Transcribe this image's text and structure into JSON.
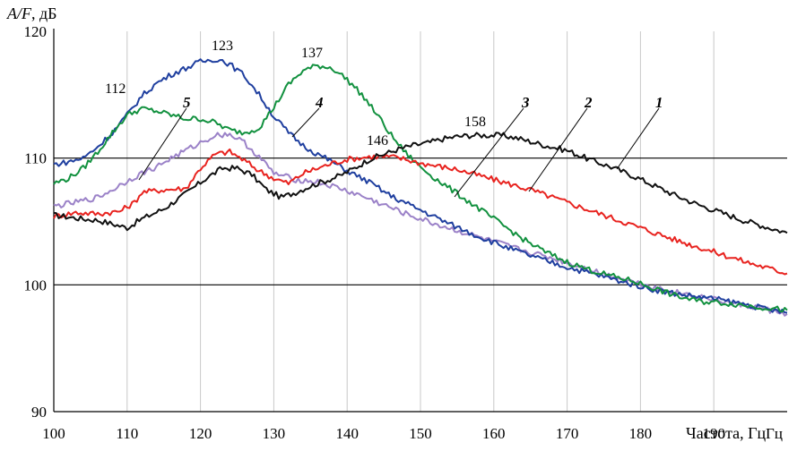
{
  "chart_data": {
    "type": "line",
    "title": "",
    "ylabel_prefix": "A/F",
    "ylabel_suffix": ", дБ",
    "xlabel": "Частота, Гц",
    "xlim": [
      100,
      200
    ],
    "ylim": [
      90,
      120
    ],
    "x_ticks": [
      100,
      110,
      120,
      130,
      140,
      150,
      160,
      170,
      180,
      190,
      200
    ],
    "x_tick_labels": [
      "100",
      "110",
      "120",
      "130",
      "140",
      "150",
      "160",
      "170",
      "180",
      "190",
      "Гц"
    ],
    "y_ticks": [
      90,
      100,
      110,
      120
    ],
    "y_tick_labels": [
      "90",
      "100",
      "110",
      "120"
    ],
    "vertical_grid": true,
    "horizontal_grid_values": [
      100,
      110
    ],
    "colors": {
      "series_1": "#111111",
      "series_2": "#e8231f",
      "series_3": "#12913f",
      "series_4": "#1f3f9f",
      "series_5": "#9b82c8"
    },
    "series": [
      {
        "name": "1",
        "color": "#111111",
        "x": [
          100,
          104,
          106,
          108,
          110,
          112,
          115,
          118,
          121,
          123,
          125,
          127,
          129,
          131,
          133,
          135,
          137,
          139,
          141,
          143,
          145,
          147,
          149,
          151,
          153,
          155,
          157,
          159,
          161,
          163,
          165,
          167,
          170,
          173,
          176,
          179,
          182,
          185,
          188,
          191,
          194,
          197,
          200
        ],
        "y": [
          105.5,
          105.2,
          105.1,
          104.8,
          104.5,
          105.2,
          106.0,
          107.2,
          108.5,
          109.2,
          109.2,
          108.7,
          107.5,
          106.9,
          107.3,
          107.8,
          108.2,
          108.6,
          109.2,
          109.9,
          110.3,
          110.7,
          111.0,
          111.2,
          111.5,
          111.7,
          111.8,
          111.8,
          111.8,
          111.6,
          111.3,
          111.0,
          110.6,
          109.9,
          109.3,
          108.6,
          107.8,
          107.0,
          106.3,
          105.7,
          105.1,
          104.6,
          104.1
        ]
      },
      {
        "name": "2",
        "color": "#e8231f",
        "x": [
          100,
          103,
          106,
          109,
          111,
          112,
          115,
          118,
          120,
          122,
          124,
          126,
          128,
          130,
          132,
          134,
          136,
          138,
          140,
          143,
          146,
          148,
          150,
          155,
          160,
          165,
          170,
          175,
          180,
          185,
          190,
          195,
          200
        ],
        "y": [
          105.4,
          105.7,
          105.6,
          105.8,
          106.5,
          107.3,
          107.5,
          107.6,
          109.2,
          110.3,
          110.5,
          109.8,
          109.0,
          108.4,
          108.0,
          108.8,
          109.2,
          109.6,
          109.9,
          110.1,
          110.1,
          109.9,
          109.6,
          109.1,
          108.3,
          107.5,
          106.5,
          105.5,
          104.5,
          103.5,
          102.6,
          101.7,
          100.9
        ]
      },
      {
        "name": "3",
        "color": "#12913f",
        "x": [
          100,
          102,
          104,
          106,
          108,
          110,
          112,
          114,
          116,
          118,
          120,
          122,
          124,
          126,
          128,
          130,
          132,
          134,
          136,
          138,
          140,
          142,
          144,
          146,
          148,
          150,
          152,
          155,
          158,
          161,
          164,
          167,
          170,
          173,
          176,
          179,
          182,
          185,
          188,
          191,
          194,
          197,
          200
        ],
        "y": [
          108.0,
          108.4,
          109.2,
          110.5,
          112.0,
          113.4,
          113.9,
          113.7,
          113.4,
          113.1,
          113.1,
          112.8,
          112.2,
          112.0,
          112.4,
          114.0,
          115.8,
          116.9,
          117.3,
          117.1,
          116.2,
          115.0,
          113.5,
          111.8,
          110.4,
          109.3,
          108.4,
          107.2,
          106.0,
          104.8,
          103.6,
          102.6,
          101.8,
          101.2,
          100.7,
          100.3,
          99.7,
          99.1,
          98.7,
          98.6,
          98.4,
          98.2,
          98.0
        ]
      },
      {
        "name": "4",
        "color": "#1f3f9f",
        "x": [
          100,
          102,
          104,
          106,
          108,
          110,
          112,
          114,
          116,
          118,
          120,
          122,
          123,
          124,
          126,
          128,
          130,
          132,
          134,
          136,
          138,
          140,
          143,
          146,
          150,
          154,
          158,
          162,
          166,
          170,
          174,
          178,
          182,
          186,
          190,
          194,
          197,
          200
        ],
        "y": [
          109.5,
          109.7,
          110.0,
          110.9,
          112.0,
          113.4,
          114.9,
          115.9,
          116.6,
          117.1,
          117.6,
          117.8,
          117.7,
          117.4,
          116.5,
          115.0,
          113.3,
          112.0,
          111.0,
          110.3,
          109.7,
          109.0,
          108.1,
          107.0,
          105.9,
          104.8,
          103.8,
          102.9,
          102.1,
          101.4,
          100.8,
          100.2,
          99.6,
          99.2,
          98.9,
          98.5,
          98.1,
          97.8
        ]
      },
      {
        "name": "5",
        "color": "#9b82c8",
        "x": [
          100,
          103,
          106,
          108,
          110,
          112,
          114,
          116,
          118,
          120,
          122,
          124,
          126,
          128,
          130,
          133,
          136,
          139,
          142,
          145,
          148,
          152,
          156,
          160,
          164,
          168,
          172,
          176,
          180,
          184,
          188,
          192,
          196,
          200
        ],
        "y": [
          106.2,
          106.5,
          106.9,
          107.5,
          108.2,
          108.8,
          109.3,
          110.0,
          110.6,
          111.2,
          111.8,
          111.9,
          111.2,
          110.1,
          108.8,
          108.3,
          108.1,
          107.6,
          107.0,
          106.3,
          105.6,
          104.8,
          104.1,
          103.4,
          102.7,
          102.1,
          101.4,
          100.7,
          100.1,
          99.5,
          99.1,
          98.6,
          98.2,
          97.7
        ]
      }
    ],
    "annotations": {
      "peaks": [
        {
          "text": "112",
          "x": 112
        },
        {
          "text": "123",
          "x": 123
        },
        {
          "text": "137",
          "x": 137
        },
        {
          "text": "146",
          "x": 146
        },
        {
          "text": "158",
          "x": 158
        }
      ],
      "curve_labels": [
        {
          "text": "1"
        },
        {
          "text": "2"
        },
        {
          "text": "3"
        },
        {
          "text": "4"
        },
        {
          "text": "5"
        }
      ]
    }
  }
}
